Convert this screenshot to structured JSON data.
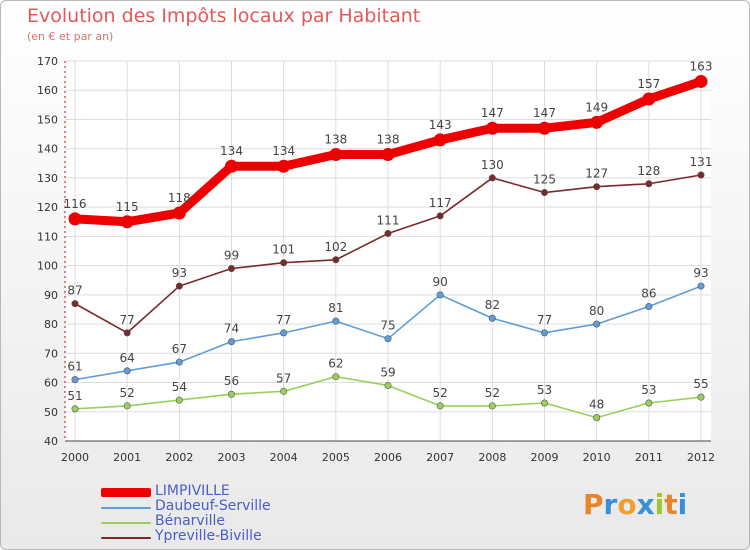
{
  "title": "Evolution des Impôts locaux par Habitant",
  "subtitle": "(en € et par an)",
  "colors": {
    "title": "#e05a5a",
    "legend_text": "#4a5ec8"
  },
  "logo": {
    "text": "Proxiti",
    "letters": [
      {
        "ch": "P",
        "color": "#e8842a"
      },
      {
        "ch": "r",
        "color": "#3a8fd6"
      },
      {
        "ch": "o",
        "color": "#f0a030"
      },
      {
        "ch": "x",
        "color": "#3a8fd6"
      },
      {
        "ch": "i",
        "color": "#9cc82e"
      },
      {
        "ch": "t",
        "color": "#e8842a"
      },
      {
        "ch": "i",
        "color": "#3a8fd6"
      }
    ]
  },
  "chart_data": {
    "type": "line",
    "title": "Evolution des Impôts locaux par Habitant",
    "subtitle": "(en € et par an)",
    "xlabel": "",
    "ylabel": "",
    "x": [
      2000,
      2001,
      2002,
      2003,
      2004,
      2005,
      2006,
      2007,
      2008,
      2009,
      2010,
      2011,
      2012
    ],
    "ylim": [
      40,
      170
    ],
    "yticks": [
      40,
      50,
      60,
      70,
      80,
      90,
      100,
      110,
      120,
      130,
      140,
      150,
      160,
      170
    ],
    "grid": true,
    "legend_position": "bottom-left",
    "series": [
      {
        "name": "LIMPIVILLE",
        "color": "#ee0000",
        "line": "thick",
        "values": [
          116,
          115,
          118,
          134,
          134,
          138,
          138,
          143,
          147,
          147,
          149,
          157,
          163
        ]
      },
      {
        "name": "Daubeuf-Serville",
        "color": "#5f9ed8",
        "line": "thin",
        "values": [
          61,
          64,
          67,
          74,
          77,
          81,
          75,
          90,
          82,
          77,
          80,
          86,
          93
        ]
      },
      {
        "name": "Bénarville",
        "color": "#9ad05a",
        "line": "thin",
        "values": [
          51,
          52,
          54,
          56,
          57,
          62,
          59,
          52,
          52,
          53,
          48,
          53,
          55
        ]
      },
      {
        "name": "Ypreville-Biville",
        "color": "#7a2a2a",
        "line": "thin",
        "values": [
          87,
          77,
          93,
          99,
          101,
          102,
          111,
          117,
          130,
          125,
          127,
          128,
          131
        ]
      }
    ]
  }
}
